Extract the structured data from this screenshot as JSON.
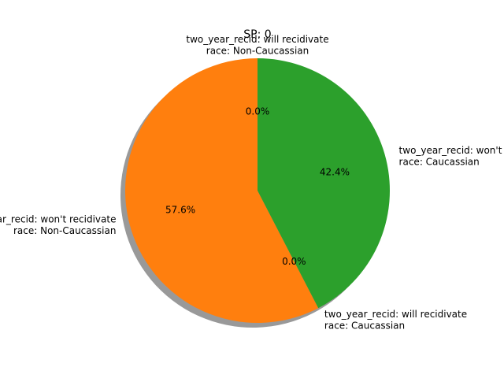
{
  "chart_data": {
    "type": "pie",
    "title": "SP: 0",
    "start_angle_deg": 90,
    "counterclock": true,
    "shadow": true,
    "slices": [
      {
        "label_lines": [
          "two_year_recid: will recidivate",
          "race: Non-Caucassian"
        ],
        "value": 0.0,
        "pct_label": "0.0%",
        "color": "#1f77b4"
      },
      {
        "label_lines": [
          "two_year_recid: won't recidivate",
          "race: Non-Caucassian"
        ],
        "value": 57.6,
        "pct_label": "57.6%",
        "color": "#ff7f0e"
      },
      {
        "label_lines": [
          "two_year_recid: will recidivate",
          "race: Caucassian"
        ],
        "value": 0.0,
        "pct_label": "0.0%",
        "color": "#2ca02c"
      },
      {
        "label_lines": [
          "two_year_recid: won't recidivate",
          "race: Caucassian"
        ],
        "value": 42.4,
        "pct_label": "42.4%",
        "color": "#2ca02c"
      }
    ]
  }
}
